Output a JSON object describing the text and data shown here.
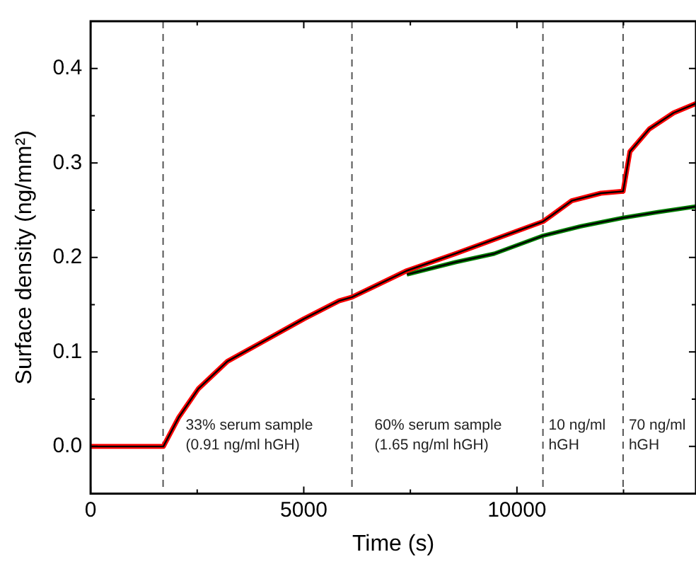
{
  "chart_data": {
    "type": "line",
    "xlabel": "Time (s)",
    "ylabel": "Surface density (ng/mm²)",
    "xlim": [
      0,
      14200
    ],
    "xticks": [
      0,
      {
        "value": 2500,
        "label": null
      },
      5000,
      {
        "value": 7500,
        "label": null
      },
      10000,
      {
        "value": 12500,
        "label": null
      }
    ],
    "ylim": [
      -0.05,
      0.45
    ],
    "yticks": [
      {
        "value": 0,
        "label": "0.0"
      },
      {
        "value": 0.05,
        "label": null
      },
      0.1,
      {
        "value": 0.15,
        "label": null
      },
      0.2,
      {
        "value": 0.25,
        "label": null
      },
      0.3,
      {
        "value": 0.35,
        "label": null
      },
      0.4
    ],
    "grid": false,
    "legend": false,
    "marker": "none",
    "line_style": "solid",
    "series": [
      {
        "color": "#ff0000",
        "x": [
          0,
          800,
          1706,
          2070,
          2526,
          3208,
          4004,
          5000,
          5826,
          6130,
          7417,
          8555,
          10610,
          10830,
          11285,
          11968,
          12490,
          12650,
          13105,
          13674,
          14200
        ],
        "values": [
          0,
          0,
          0,
          0.031,
          0.061,
          0.09,
          0.11,
          0.135,
          0.154,
          0.158,
          0.186,
          0.204,
          0.238,
          0.245,
          0.26,
          0.268,
          0.27,
          0.312,
          0.336,
          0.353,
          0.363
        ]
      },
      {
        "color": "#008000",
        "x": [
          7417,
          8555,
          9465,
          10610,
          11500,
          12490,
          13300,
          14200
        ],
        "values": [
          0.182,
          0.195,
          0.204,
          0.223,
          0.233,
          0.242,
          0.248,
          0.254
        ]
      }
    ],
    "ref_lines": [
      {
        "axis": "x",
        "value": 1700,
        "color": "#555555",
        "line_style": "dashed"
      },
      {
        "axis": "x",
        "value": 6130,
        "color": "#555555",
        "line_style": "dashed"
      },
      {
        "axis": "x",
        "value": 10610,
        "color": "#555555",
        "line_style": "dashed"
      },
      {
        "axis": "x",
        "value": 12490,
        "color": "#555555",
        "line_style": "dashed"
      }
    ],
    "annotations": [
      "33% serum sample\n(0.91 ng/ml hGH)",
      "60% serum sample\n(1.65 ng/ml hGH)",
      "10 ng/ml\nhGH",
      "70 ng/ml\nhGH"
    ]
  }
}
